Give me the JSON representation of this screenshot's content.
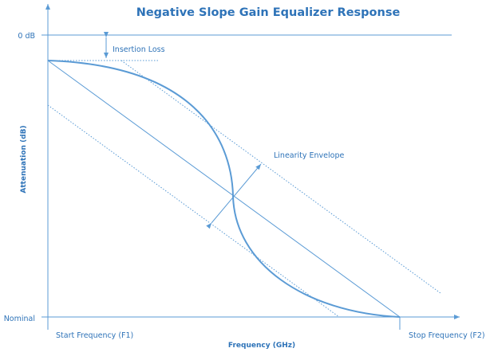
{
  "title": "Negative Slope Gain Equalizer Response",
  "axes": {
    "x_label": "Frequency (GHz)",
    "y_label": "Attenuation (dB)"
  },
  "ticks": {
    "y_top": "0 dB",
    "y_bottom": "Nominal",
    "x_start": "Start Frequency (F1)",
    "x_stop": "Stop Frequency (F2)"
  },
  "annotations": {
    "insertion_loss": "Insertion Loss",
    "linearity_envelope": "Linearity Envelope"
  },
  "colors": {
    "line": "#5b9bd5",
    "text": "#2e73b8",
    "background": "#ffffff"
  }
}
